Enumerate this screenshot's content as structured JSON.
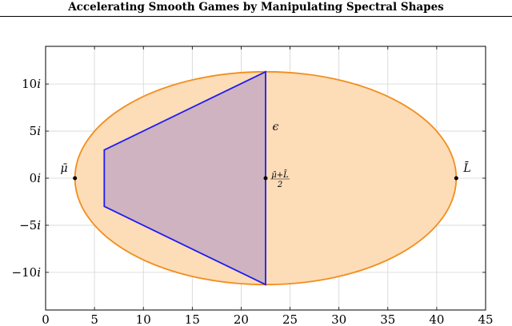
{
  "page": {
    "header_title": "Accelerating Smooth Games by Manipulating Spectral Shapes"
  },
  "chart_data": {
    "type": "area",
    "xlim": [
      0,
      45
    ],
    "ylim": [
      -14,
      14
    ],
    "xticks": [
      0,
      5,
      10,
      15,
      20,
      25,
      30,
      35,
      40,
      45
    ],
    "xtick_labels": [
      "0",
      "5",
      "10",
      "15",
      "20",
      "25",
      "30",
      "35",
      "40",
      "45"
    ],
    "yticks": [
      -10,
      -5,
      0,
      5,
      10
    ],
    "ytick_labels": [
      "−10i",
      "−5i",
      "0i",
      "5i",
      "10i"
    ],
    "grid": true,
    "ellipse": {
      "center": [
        22.5,
        0
      ],
      "semi_axis_x": 19.5,
      "semi_axis_y": 11.3,
      "fill": "#fddcb8",
      "stroke": "#f28e1c"
    },
    "polygon": {
      "vertices": [
        [
          6,
          3
        ],
        [
          22.5,
          11.3
        ],
        [
          22.5,
          -11.3
        ],
        [
          6,
          -3
        ]
      ],
      "fill": "#cfb3c0",
      "stroke": "#1c1cf2"
    },
    "points": [
      {
        "x": 3,
        "y": 0,
        "label": "μ̄",
        "label_pos": "left"
      },
      {
        "x": 22.5,
        "y": 0,
        "label": "(μ̄+L̄)/2",
        "label_pos": "right"
      },
      {
        "x": 42,
        "y": 0,
        "label": "L̄",
        "label_pos": "right"
      }
    ],
    "annotations": [
      {
        "text": "ϵ",
        "x": 23.2,
        "y": 5.5
      }
    ],
    "mid_label": {
      "numerator": "μ̄+L̄",
      "denominator": "2"
    }
  }
}
